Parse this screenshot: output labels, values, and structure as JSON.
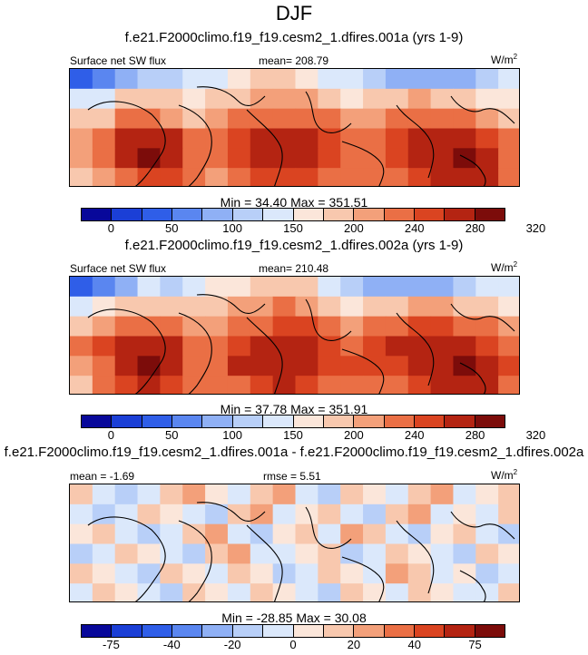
{
  "figure_title": "DJF",
  "units_base": "W/m",
  "units_exp": "2",
  "colors": {
    "abs_scale": [
      "#08089a",
      "#1b3fd6",
      "#2f5ee8",
      "#5a86f0",
      "#8fb0f5",
      "#b8cff8",
      "#dbe8fb",
      "#fbe6da",
      "#f8c8ae",
      "#f3a07a",
      "#ea6f45",
      "#da4421",
      "#b42412",
      "#7c0c0a"
    ],
    "diff_scale": [
      "#08089a",
      "#1b3fd6",
      "#2f5ee8",
      "#5a86f0",
      "#8fb0f5",
      "#b8cff8",
      "#dbe8fb",
      "#fbe6da",
      "#f8c8ae",
      "#f3a07a",
      "#ea6f45",
      "#da4421",
      "#b42412",
      "#7c0c0a"
    ]
  },
  "chart_data": [
    {
      "type": "heatmap",
      "title": "f.e21.F2000climo.f19_f19.cesm2_1.dfires.001a (yrs 1-9)",
      "left_label": "Surface net SW flux",
      "center_label": "mean= 208.79",
      "mean": 208.79,
      "min": 34.4,
      "max": 351.51,
      "minmax_text": "Min =  34.40 Max = 351.51",
      "colorbar_ticks": [
        "0",
        "50",
        "100",
        "150",
        "200",
        "240",
        "280",
        "320"
      ],
      "field_values": [
        [
          60,
          80,
          120,
          140,
          130,
          150,
          170,
          190,
          200,
          210,
          190,
          170,
          150,
          130,
          120,
          110,
          100,
          120,
          140,
          160
        ],
        [
          150,
          170,
          200,
          210,
          200,
          190,
          200,
          220,
          230,
          240,
          230,
          210,
          190,
          200,
          220,
          230,
          220,
          200,
          190,
          180
        ],
        [
          200,
          220,
          250,
          260,
          240,
          220,
          230,
          250,
          260,
          270,
          270,
          250,
          230,
          240,
          260,
          270,
          270,
          260,
          240,
          220
        ],
        [
          240,
          270,
          300,
          320,
          300,
          260,
          250,
          290,
          300,
          310,
          300,
          280,
          260,
          270,
          290,
          300,
          310,
          300,
          280,
          250
        ],
        [
          230,
          260,
          300,
          330,
          310,
          270,
          250,
          290,
          310,
          320,
          310,
          290,
          270,
          270,
          280,
          300,
          320,
          330,
          310,
          270
        ],
        [
          210,
          240,
          270,
          290,
          290,
          260,
          240,
          260,
          280,
          290,
          290,
          270,
          250,
          250,
          260,
          280,
          300,
          310,
          300,
          260
        ]
      ]
    },
    {
      "type": "heatmap",
      "title": "f.e21.F2000climo.f19_f19.cesm2_1.dfires.002a (yrs 1-9)",
      "left_label": "Surface net SW flux",
      "center_label": "mean= 210.48",
      "mean": 210.48,
      "min": 37.78,
      "max": 351.91,
      "minmax_text": "Min =  37.78 Max = 351.91",
      "colorbar_ticks": [
        "0",
        "50",
        "100",
        "150",
        "200",
        "240",
        "280",
        "320"
      ],
      "field_values": [
        [
          70,
          90,
          120,
          150,
          140,
          160,
          180,
          190,
          210,
          220,
          200,
          170,
          140,
          120,
          110,
          110,
          110,
          130,
          150,
          170
        ],
        [
          160,
          180,
          210,
          220,
          210,
          200,
          210,
          230,
          240,
          250,
          240,
          220,
          190,
          200,
          220,
          240,
          230,
          210,
          200,
          190
        ],
        [
          210,
          230,
          260,
          270,
          250,
          230,
          240,
          260,
          270,
          280,
          280,
          260,
          240,
          250,
          270,
          280,
          280,
          270,
          250,
          230
        ],
        [
          250,
          280,
          310,
          320,
          300,
          260,
          260,
          290,
          300,
          310,
          300,
          280,
          270,
          280,
          300,
          310,
          310,
          300,
          290,
          260
        ],
        [
          240,
          270,
          310,
          330,
          310,
          270,
          260,
          300,
          310,
          320,
          310,
          290,
          280,
          280,
          290,
          300,
          320,
          330,
          320,
          280
        ],
        [
          220,
          250,
          280,
          300,
          290,
          260,
          250,
          270,
          290,
          300,
          290,
          270,
          260,
          260,
          270,
          290,
          300,
          310,
          300,
          270
        ]
      ]
    },
    {
      "type": "heatmap",
      "title": "f.e21.F2000climo.f19_f19.cesm2_1.dfires.001a - f.e21.F2000climo.f19_f19.cesm2_1.dfires.002a",
      "left_label": "mean =  -1.69",
      "center_label": "rmse =   5.51",
      "mean": -1.69,
      "rmse": 5.51,
      "min": -28.85,
      "max": 30.08,
      "minmax_text": "Min = -28.85 Max =  30.08",
      "colorbar_ticks": [
        "-75",
        "-40",
        "-20",
        "0",
        "20",
        "40",
        "75"
      ],
      "field_values": [
        [
          5,
          -5,
          -10,
          -5,
          5,
          10,
          0,
          -5,
          5,
          10,
          -5,
          -10,
          5,
          0,
          -5,
          5,
          10,
          -5,
          0,
          5
        ],
        [
          -5,
          -10,
          -5,
          5,
          0,
          -5,
          -10,
          5,
          10,
          -5,
          0,
          5,
          -5,
          -10,
          5,
          10,
          -5,
          0,
          -5,
          5
        ],
        [
          0,
          5,
          -5,
          -10,
          -5,
          5,
          10,
          -5,
          -10,
          0,
          5,
          -5,
          10,
          5,
          -5,
          -10,
          0,
          5,
          -5,
          -10
        ],
        [
          -10,
          -5,
          5,
          0,
          -5,
          -10,
          5,
          10,
          -5,
          -5,
          0,
          5,
          -10,
          -5,
          5,
          0,
          -5,
          -10,
          5,
          0
        ],
        [
          5,
          0,
          -5,
          -10,
          5,
          0,
          -5,
          5,
          0,
          -10,
          -5,
          5,
          0,
          -5,
          10,
          5,
          -5,
          0,
          -10,
          -5
        ],
        [
          -5,
          5,
          0,
          -5,
          -10,
          5,
          0,
          -5,
          5,
          0,
          -5,
          -10,
          5,
          0,
          -5,
          5,
          0,
          -5,
          -5,
          5
        ]
      ]
    }
  ]
}
